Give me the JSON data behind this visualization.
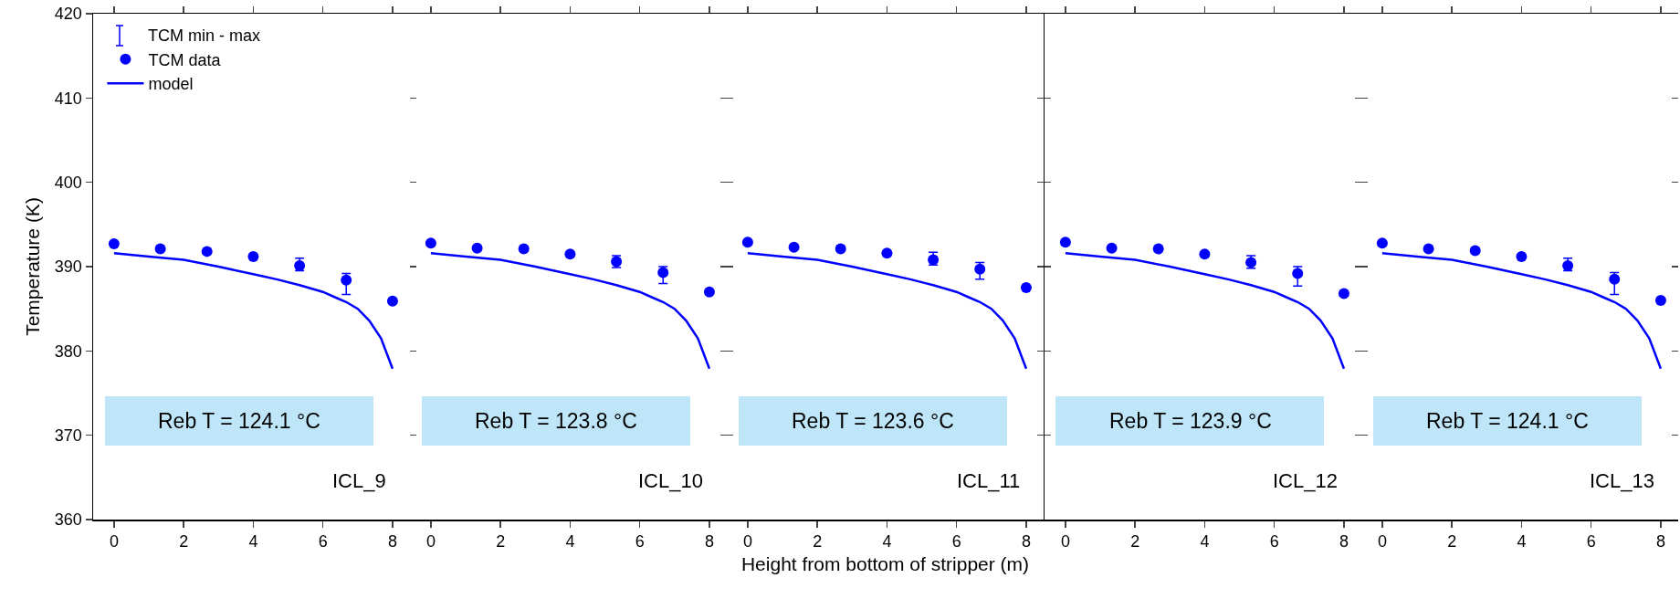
{
  "chart_data": [
    {
      "type": "scatter",
      "x": [
        0,
        1.33,
        2.67,
        4,
        5.33,
        6.67,
        8
      ],
      "ylabel": "Temperature (K)",
      "legend": "top left",
      "marker": "circle",
      "xlim": [
        -0.6,
        8.5
      ],
      "xticks": [
        0,
        2,
        4,
        6,
        8
      ],
      "ylim": [
        360,
        420
      ],
      "yticks": [
        360,
        370,
        380,
        390,
        400,
        410,
        420
      ],
      "annotations": [
        "Reb T = 124.1 °C",
        "ICL_9",
        "TCM min - max"
      ],
      "series": [
        {
          "name": "TCM data",
          "color": "#0000ff",
          "values": [
            392.7,
            392.1,
            391.8,
            391.2,
            390.1,
            388.4,
            385.9
          ],
          "errors": [
            null,
            null,
            null,
            null,
            [
              389.5,
              391.0
            ],
            [
              386.7,
              389.2
            ],
            null
          ]
        },
        {
          "name": "model",
          "type": "line",
          "color": "#0000ff",
          "marker": "none",
          "x": [
            0,
            1,
            2,
            3,
            4,
            4.67,
            5.33,
            6,
            6.33,
            6.67,
            7,
            7.33,
            7.67,
            8
          ],
          "values": [
            391.6,
            391.2,
            390.8,
            390.0,
            389.1,
            388.5,
            387.8,
            387.0,
            386.4,
            385.8,
            385.0,
            383.6,
            381.5,
            377.9
          ]
        }
      ]
    },
    {
      "type": "scatter",
      "x": [
        0,
        1.33,
        2.67,
        4,
        5.33,
        6.67,
        8
      ],
      "marker": "circle",
      "tick_labels": "x",
      "xlim": [
        -0.6,
        8.5
      ],
      "xticks": [
        0,
        2,
        4,
        6,
        8
      ],
      "ylim": [
        360,
        420
      ],
      "yticks": [
        360,
        370,
        380,
        390,
        400,
        410,
        420
      ],
      "annotations": [
        "Reb T = 123.8 °C",
        "ICL_10"
      ],
      "series": [
        {
          "color": "#0000ff",
          "values": [
            392.8,
            392.2,
            392.1,
            391.5,
            390.6,
            389.3,
            387.0
          ],
          "errors": [
            null,
            null,
            null,
            null,
            [
              389.9,
              391.3
            ],
            [
              388.0,
              390.0
            ],
            null
          ]
        },
        {
          "type": "line",
          "color": "#0000ff",
          "marker": "none",
          "x": [
            0,
            1,
            2,
            3,
            4,
            4.67,
            5.33,
            6,
            6.33,
            6.67,
            7,
            7.33,
            7.67,
            8
          ],
          "values": [
            391.6,
            391.2,
            390.8,
            390.0,
            389.1,
            388.5,
            387.8,
            387.0,
            386.4,
            385.8,
            385.0,
            383.6,
            381.5,
            377.9
          ]
        }
      ]
    },
    {
      "type": "scatter",
      "x": [
        0,
        1.33,
        2.67,
        4,
        5.33,
        6.67,
        8
      ],
      "marker": "circle",
      "tick_labels": "x",
      "xlabel": "Height from bottom of stripper (m)",
      "xlim": [
        -0.6,
        8.5
      ],
      "xticks": [
        0,
        2,
        4,
        6,
        8
      ],
      "ylim": [
        360,
        420
      ],
      "yticks": [
        360,
        370,
        380,
        390,
        400,
        410,
        420
      ],
      "annotations": [
        "Reb T = 123.6 °C",
        "ICL_11"
      ],
      "series": [
        {
          "color": "#0000ff",
          "values": [
            392.9,
            392.3,
            392.1,
            391.6,
            390.8,
            389.7,
            387.5
          ],
          "errors": [
            null,
            null,
            null,
            null,
            [
              390.2,
              391.7
            ],
            [
              388.5,
              390.5
            ],
            null
          ]
        },
        {
          "type": "line",
          "color": "#0000ff",
          "marker": "none",
          "x": [
            0,
            1,
            2,
            3,
            4,
            4.67,
            5.33,
            6,
            6.33,
            6.67,
            7,
            7.33,
            7.67,
            8
          ],
          "values": [
            391.6,
            391.2,
            390.8,
            390.0,
            389.1,
            388.5,
            387.8,
            387.0,
            386.4,
            385.8,
            385.0,
            383.6,
            381.5,
            377.9
          ]
        }
      ]
    },
    {
      "type": "scatter",
      "x": [
        0,
        1.33,
        2.67,
        4,
        5.33,
        6.67,
        8
      ],
      "marker": "circle",
      "tick_labels": "x",
      "xlim": [
        -0.6,
        8.5
      ],
      "xticks": [
        0,
        2,
        4,
        6,
        8
      ],
      "ylim": [
        360,
        420
      ],
      "yticks": [
        360,
        370,
        380,
        390,
        400,
        410,
        420
      ],
      "annotations": [
        "Reb T = 123.9 °C",
        "ICL_12"
      ],
      "series": [
        {
          "color": "#0000ff",
          "values": [
            392.9,
            392.2,
            392.1,
            391.5,
            390.5,
            389.2,
            386.8
          ],
          "errors": [
            null,
            null,
            null,
            null,
            [
              389.8,
              391.3
            ],
            [
              387.7,
              390.0
            ],
            null
          ]
        },
        {
          "type": "line",
          "color": "#0000ff",
          "marker": "none",
          "x": [
            0,
            1,
            2,
            3,
            4,
            4.67,
            5.33,
            6,
            6.33,
            6.67,
            7,
            7.33,
            7.67,
            8
          ],
          "values": [
            391.6,
            391.2,
            390.8,
            390.0,
            389.1,
            388.5,
            387.8,
            387.0,
            386.4,
            385.8,
            385.0,
            383.6,
            381.5,
            377.9
          ]
        }
      ]
    },
    {
      "type": "scatter",
      "x": [
        0,
        1.33,
        2.67,
        4,
        5.33,
        6.67,
        8
      ],
      "marker": "circle",
      "tick_labels": "x",
      "xlim": [
        -0.6,
        8.5
      ],
      "xticks": [
        0,
        2,
        4,
        6,
        8
      ],
      "ylim": [
        360,
        420
      ],
      "yticks": [
        360,
        370,
        380,
        390,
        400,
        410,
        420
      ],
      "annotations": [
        "Reb T = 124.1 °C",
        "ICL_13"
      ],
      "series": [
        {
          "color": "#0000ff",
          "values": [
            392.8,
            392.1,
            391.9,
            391.2,
            390.1,
            388.5,
            386.0
          ],
          "errors": [
            null,
            null,
            null,
            null,
            [
              389.5,
              391.0
            ],
            [
              386.7,
              389.3
            ],
            null
          ]
        },
        {
          "type": "line",
          "color": "#0000ff",
          "marker": "none",
          "x": [
            0,
            1,
            2,
            3,
            4,
            4.67,
            5.33,
            6,
            6.33,
            6.67,
            7,
            7.33,
            7.67,
            8
          ],
          "values": [
            391.6,
            391.2,
            390.8,
            390.0,
            389.1,
            388.5,
            387.8,
            387.0,
            386.4,
            385.8,
            385.0,
            383.6,
            381.5,
            377.9
          ]
        }
      ]
    }
  ]
}
